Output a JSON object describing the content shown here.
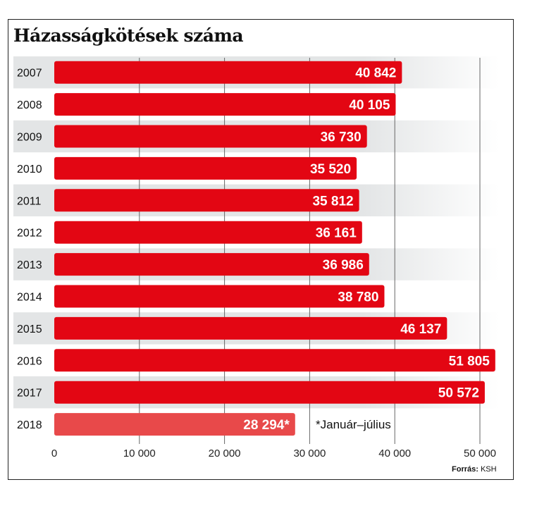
{
  "title": "Házasságkötések száma",
  "note": "*Január–július",
  "source": {
    "label": "Forrás:",
    "value": "KSH"
  },
  "colors": {
    "bar": "#e30613",
    "bar_partial": "#e8494a",
    "band": "#e3e5e6",
    "grid": "#666666"
  },
  "chart_data": {
    "type": "bar",
    "orientation": "horizontal",
    "title": "Házasságkötések száma",
    "categories": [
      "2007",
      "2008",
      "2009",
      "2010",
      "2011",
      "2012",
      "2013",
      "2014",
      "2015",
      "2016",
      "2017",
      "2018"
    ],
    "values": [
      40842,
      40105,
      36730,
      35520,
      35812,
      36161,
      36986,
      38780,
      46137,
      51805,
      50572,
      28294
    ],
    "value_labels": [
      "40 842",
      "40 105",
      "36 730",
      "35 520",
      "35 812",
      "36 161",
      "36 986",
      "38 780",
      "46 137",
      "51 805",
      "50 572",
      "28 294*"
    ],
    "xlim": [
      0,
      50000
    ],
    "xticks": [
      0,
      10000,
      20000,
      30000,
      40000,
      50000
    ],
    "xtick_labels": [
      "0",
      "10 000",
      "20 000",
      "30 000",
      "40 000",
      "50 000"
    ],
    "grid": true,
    "partial_category": "2018"
  }
}
